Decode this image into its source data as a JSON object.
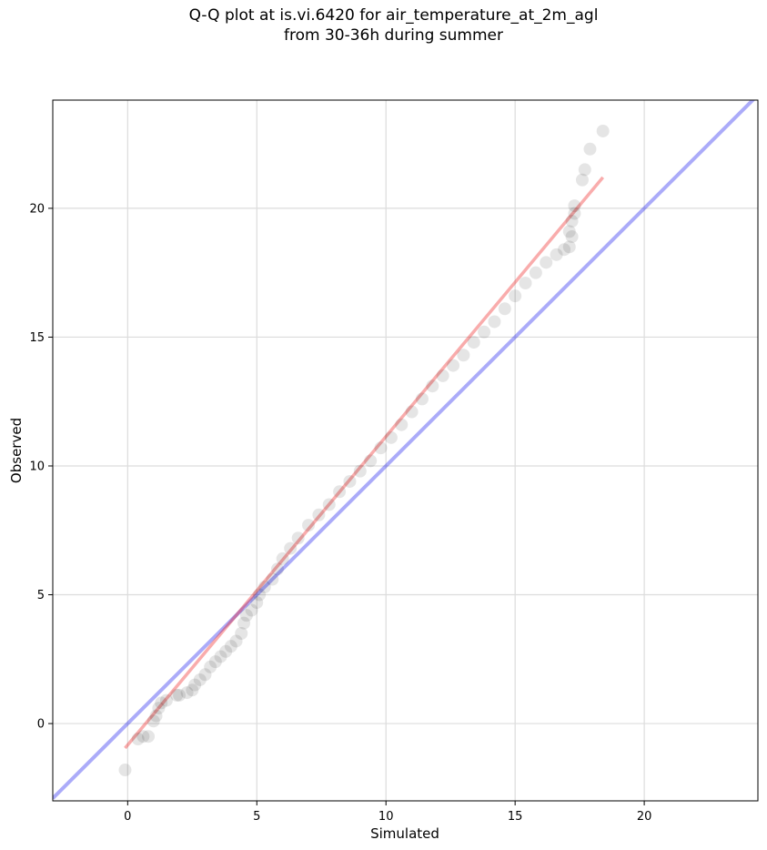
{
  "chart_data": {
    "type": "scatter",
    "title_lines": [
      "Q-Q plot at is.vi.6420 for air_temperature_at_2m_agl",
      "from 30-36h during summer"
    ],
    "xlabel": "Simulated",
    "ylabel": "Observed",
    "xlim": [
      -2.9,
      24.4
    ],
    "ylim": [
      -3.0,
      24.2
    ],
    "xticks": [
      0,
      5,
      10,
      15,
      20
    ],
    "yticks": [
      0,
      5,
      10,
      15,
      20
    ],
    "grid": true,
    "colors": {
      "points": "#000000",
      "identity_line": "#0000ee",
      "fit_line": "#ee1111",
      "grid": "#dcdcdc"
    },
    "reference_lines": [
      {
        "kind": "identity",
        "x": [
          -2.9,
          24.4
        ],
        "y": [
          -2.9,
          24.4
        ]
      },
      {
        "kind": "fit",
        "x": [
          -0.1,
          18.4
        ],
        "y": [
          -0.95,
          21.2
        ]
      }
    ],
    "points": [
      [
        -0.1,
        -1.8
      ],
      [
        0.4,
        -0.6
      ],
      [
        0.6,
        -0.5
      ],
      [
        0.8,
        -0.5
      ],
      [
        1.0,
        0.1
      ],
      [
        1.1,
        0.3
      ],
      [
        1.2,
        0.6
      ],
      [
        1.3,
        0.8
      ],
      [
        1.5,
        0.9
      ],
      [
        1.9,
        1.1
      ],
      [
        2.0,
        1.1
      ],
      [
        2.3,
        1.2
      ],
      [
        2.5,
        1.3
      ],
      [
        2.6,
        1.5
      ],
      [
        2.8,
        1.7
      ],
      [
        3.0,
        1.9
      ],
      [
        3.2,
        2.2
      ],
      [
        3.4,
        2.4
      ],
      [
        3.6,
        2.6
      ],
      [
        3.8,
        2.8
      ],
      [
        4.0,
        3.0
      ],
      [
        4.2,
        3.2
      ],
      [
        4.4,
        3.5
      ],
      [
        4.5,
        3.9
      ],
      [
        4.6,
        4.2
      ],
      [
        4.8,
        4.4
      ],
      [
        5.0,
        4.7
      ],
      [
        5.1,
        5.0
      ],
      [
        5.3,
        5.3
      ],
      [
        5.6,
        5.6
      ],
      [
        5.8,
        6.0
      ],
      [
        6.0,
        6.4
      ],
      [
        6.3,
        6.8
      ],
      [
        6.6,
        7.2
      ],
      [
        7.0,
        7.7
      ],
      [
        7.4,
        8.1
      ],
      [
        7.8,
        8.5
      ],
      [
        8.2,
        9.0
      ],
      [
        8.6,
        9.4
      ],
      [
        9.0,
        9.8
      ],
      [
        9.4,
        10.2
      ],
      [
        9.8,
        10.7
      ],
      [
        10.2,
        11.1
      ],
      [
        10.6,
        11.6
      ],
      [
        11.0,
        12.1
      ],
      [
        11.4,
        12.6
      ],
      [
        11.8,
        13.1
      ],
      [
        12.2,
        13.5
      ],
      [
        12.6,
        13.9
      ],
      [
        13.0,
        14.3
      ],
      [
        13.4,
        14.8
      ],
      [
        13.8,
        15.2
      ],
      [
        14.2,
        15.6
      ],
      [
        14.6,
        16.1
      ],
      [
        15.0,
        16.6
      ],
      [
        15.4,
        17.1
      ],
      [
        15.8,
        17.5
      ],
      [
        16.2,
        17.9
      ],
      [
        16.6,
        18.2
      ],
      [
        16.9,
        18.4
      ],
      [
        17.1,
        18.5
      ],
      [
        17.2,
        18.9
      ],
      [
        17.1,
        19.1
      ],
      [
        17.2,
        19.5
      ],
      [
        17.3,
        19.8
      ],
      [
        17.3,
        20.1
      ],
      [
        17.6,
        21.1
      ],
      [
        17.7,
        21.5
      ],
      [
        17.9,
        22.3
      ],
      [
        18.4,
        23.0
      ]
    ]
  }
}
